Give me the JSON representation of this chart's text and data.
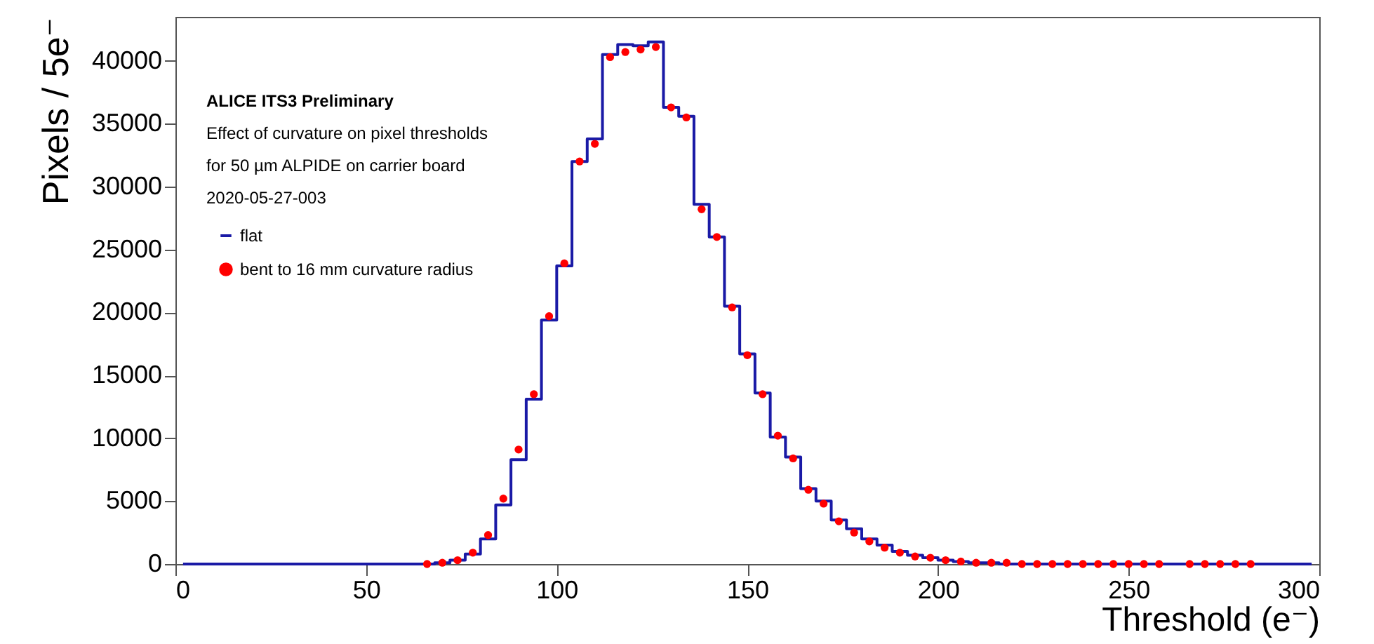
{
  "chart_data": {
    "type": "histogram",
    "xlabel": "Threshold (e⁻)",
    "ylabel": "Pixels / 5e⁻",
    "annotations": [
      "ALICE ITS3 Preliminary",
      "Effect of curvature on pixel thresholds",
      "for 50 µm ALPIDE on carrier board",
      "2020-05-27-003"
    ],
    "x": [
      2,
      6,
      10,
      14,
      18,
      22,
      26,
      30,
      34,
      38,
      42,
      46,
      50,
      54,
      58,
      62,
      66,
      70,
      74,
      78,
      82,
      86,
      90,
      94,
      98,
      102,
      106,
      110,
      114,
      118,
      122,
      126,
      130,
      134,
      138,
      142,
      146,
      150,
      154,
      158,
      162,
      166,
      170,
      174,
      178,
      182,
      186,
      190,
      194,
      198,
      202,
      206,
      210,
      214,
      218,
      222,
      226,
      230,
      234,
      238,
      242,
      246,
      250,
      254,
      258,
      262,
      266,
      270,
      274,
      278,
      282,
      286,
      290,
      294,
      298
    ],
    "series": [
      {
        "name": "flat",
        "type": "step",
        "color": "#1a1aa6",
        "values": [
          0,
          0,
          0,
          0,
          0,
          0,
          0,
          0,
          0,
          0,
          0,
          0,
          0,
          0,
          0,
          0,
          0,
          100,
          300,
          800,
          2000,
          4700,
          8300,
          13100,
          19400,
          23700,
          32000,
          33800,
          40500,
          41300,
          41200,
          41500,
          36300,
          35600,
          28600,
          26000,
          20500,
          16700,
          13600,
          10100,
          8500,
          6000,
          5000,
          3500,
          2800,
          2000,
          1500,
          1000,
          700,
          500,
          300,
          200,
          100,
          100,
          0,
          0,
          0,
          0,
          0,
          0,
          0,
          0,
          0,
          0,
          0,
          0,
          0,
          0,
          0,
          0,
          0,
          0,
          0,
          0,
          0
        ]
      },
      {
        "name": "bent to 16 mm curvature radius",
        "type": "scatter",
        "marker": "circle",
        "color": "#ff0000",
        "values": [
          null,
          null,
          null,
          null,
          null,
          null,
          null,
          null,
          null,
          null,
          null,
          null,
          null,
          null,
          null,
          null,
          0,
          100,
          300,
          900,
          2300,
          5200,
          9100,
          13500,
          19700,
          23900,
          32000,
          33400,
          40300,
          40700,
          40900,
          41100,
          36300,
          35500,
          28200,
          26000,
          20400,
          16600,
          13500,
          10200,
          8400,
          5900,
          4800,
          3400,
          2500,
          1800,
          1300,
          900,
          600,
          500,
          300,
          200,
          100,
          100,
          100,
          0,
          0,
          0,
          0,
          0,
          0,
          0,
          0,
          0,
          0,
          null,
          0,
          0,
          0,
          0,
          0,
          null,
          null,
          null,
          null
        ]
      }
    ],
    "xlim": [
      0,
      300
    ],
    "xticks": [
      0,
      50,
      100,
      150,
      200,
      250,
      300
    ],
    "ylim": [
      0,
      43500
    ],
    "yticks": [
      0,
      5000,
      10000,
      15000,
      20000,
      25000,
      30000,
      35000,
      40000
    ],
    "grid": false,
    "legend": "top left",
    "line_style": "solid"
  }
}
